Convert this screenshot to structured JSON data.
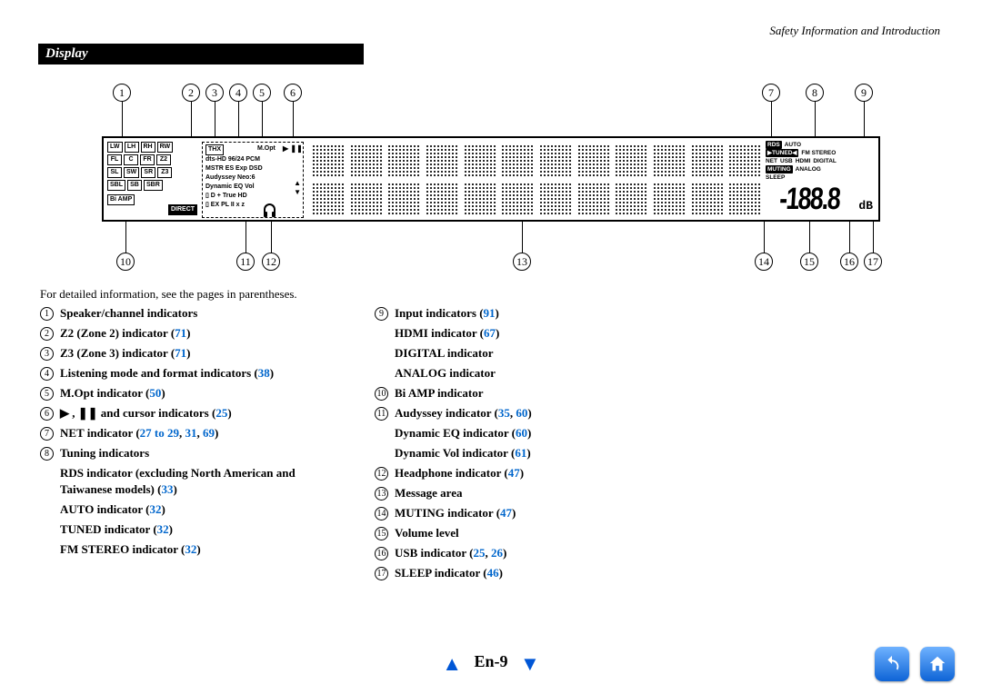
{
  "header": {
    "section_heading": "Safety Information and Introduction"
  },
  "title": "Display",
  "intro": "For detailed information, see the pages in parentheses.",
  "callouts_top": [
    "1",
    "2",
    "3",
    "4",
    "5",
    "6",
    "7",
    "8",
    "9"
  ],
  "callouts_bot": [
    "10",
    "11",
    "12",
    "13",
    "14",
    "15",
    "16",
    "17"
  ],
  "panel": {
    "speaker_rows": [
      [
        "LW",
        "LH",
        "RH",
        "RW"
      ],
      [
        "FL",
        "C",
        "FR",
        "Z2"
      ],
      [
        "SL",
        "SW",
        "SR",
        "Z3"
      ],
      [
        "SBL",
        "SB",
        "SBR"
      ]
    ],
    "biamp_label": "Bi AMP",
    "fmt_lines": [
      "dts-HD 96/24 PCM",
      "MSTR ES Exp DSD",
      "Audyssey Neo:6",
      "Dynamic EQ   Vol",
      "▯ D + True HD",
      "▯ EX PL II x z"
    ],
    "thx_label": "THX",
    "direct_label": "DIRECT",
    "mopt_label": "M.Opt",
    "play_icons": "▶ ❚❚",
    "cursor_icons": "▲ ▼ ◀ ▶",
    "right_lines": [
      [
        "RDS",
        "AUTO"
      ],
      [
        "▶TUNED◀",
        "FM STEREO"
      ],
      [
        "NET",
        "USB",
        "HDMI",
        "DIGITAL"
      ],
      [
        "MUTING",
        "ANALOG"
      ],
      [
        "SLEEP"
      ]
    ],
    "volume_value": "-188.8",
    "volume_unit": "dB"
  },
  "left_col": [
    {
      "n": "1",
      "text": "Speaker/channel indicators"
    },
    {
      "n": "2",
      "text": "Z2 (Zone 2) indicator",
      "refs": [
        "71"
      ]
    },
    {
      "n": "3",
      "text": "Z3 (Zone 3) indicator",
      "refs": [
        "71"
      ]
    },
    {
      "n": "4",
      "text": "Listening mode and format indicators",
      "refs": [
        "38"
      ]
    },
    {
      "n": "5",
      "text": "M.Opt indicator",
      "refs": [
        "50"
      ]
    },
    {
      "n": "6",
      "text": "▶ , ❚❚ and cursor indicators",
      "refs": [
        "25"
      ]
    },
    {
      "n": "7",
      "text": "NET indicator",
      "refs": [
        "27 to 29",
        "31",
        "69"
      ]
    },
    {
      "n": "8",
      "text": "Tuning indicators"
    }
  ],
  "left_subs": [
    {
      "text": "RDS indicator (excluding North American and Taiwanese models)",
      "refs": [
        "33"
      ]
    },
    {
      "text": "AUTO indicator",
      "refs": [
        "32"
      ]
    },
    {
      "text": "TUNED indicator",
      "refs": [
        "32"
      ]
    },
    {
      "text": "FM STEREO indicator",
      "refs": [
        "32"
      ]
    }
  ],
  "right_col_top": [
    {
      "n": "9",
      "text": "Input indicators",
      "refs": [
        "91"
      ]
    }
  ],
  "right_subs_top": [
    {
      "text": "HDMI indicator",
      "refs": [
        "67"
      ]
    },
    {
      "text": "DIGITAL indicator"
    },
    {
      "text": "ANALOG indicator"
    }
  ],
  "right_col": [
    {
      "n": "10",
      "text": "Bi AMP indicator"
    },
    {
      "n": "11",
      "text": "Audyssey indicator",
      "refs": [
        "35",
        "60"
      ]
    }
  ],
  "right_subs_mid": [
    {
      "text": "Dynamic EQ indicator",
      "refs": [
        "60"
      ]
    },
    {
      "text": "Dynamic Vol indicator",
      "refs": [
        "61"
      ]
    }
  ],
  "right_col2": [
    {
      "n": "12",
      "text": "Headphone indicator",
      "refs": [
        "47"
      ]
    },
    {
      "n": "13",
      "text": "Message area"
    },
    {
      "n": "14",
      "text": "MUTING indicator",
      "refs": [
        "47"
      ]
    },
    {
      "n": "15",
      "text": "Volume level"
    },
    {
      "n": "16",
      "text": "USB indicator",
      "refs": [
        "25",
        "26"
      ]
    },
    {
      "n": "17",
      "text": "SLEEP indicator",
      "refs": [
        "46"
      ]
    }
  ],
  "footer": {
    "page": "En-9"
  },
  "colors": {
    "link": "#0066cc",
    "nav": "#0056d6"
  }
}
